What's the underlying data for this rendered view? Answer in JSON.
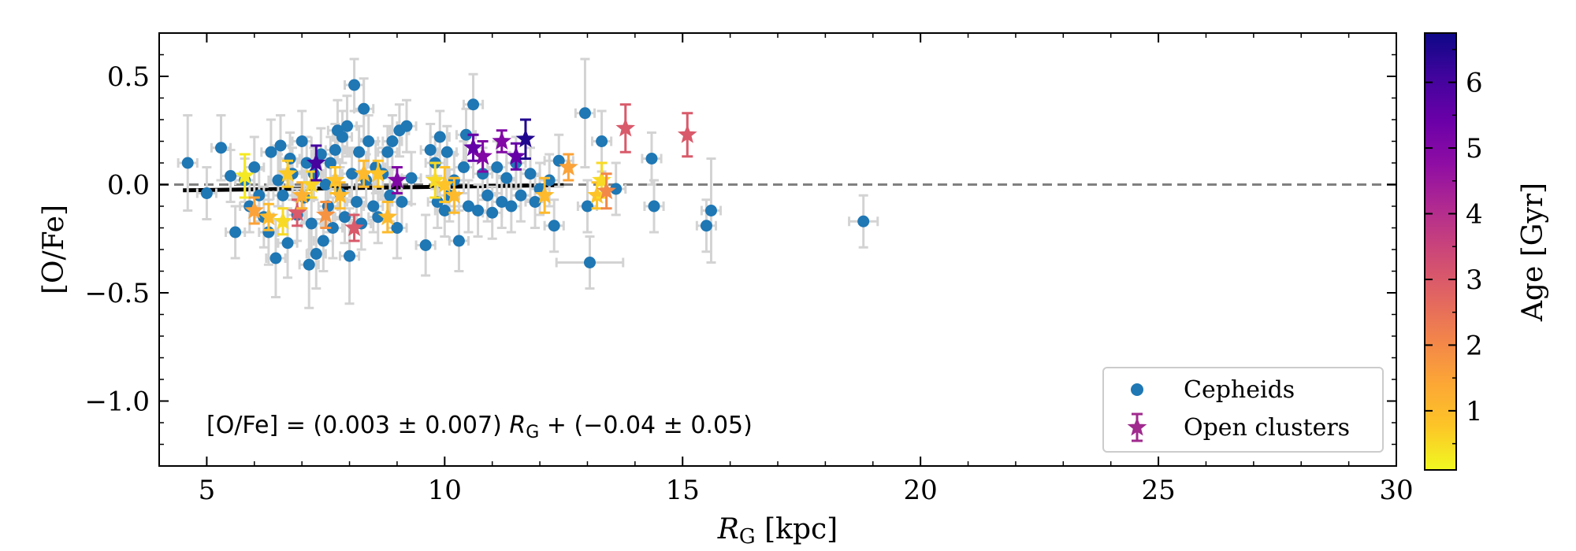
{
  "chart_data": {
    "type": "scatter",
    "title": "",
    "xlabel_main": "R",
    "xlabel_sub": "G",
    "xlabel_unit": " [kpc]",
    "ylabel": "[O/Fe]",
    "xlim": [
      4,
      30
    ],
    "ylim": [
      -1.3,
      0.7
    ],
    "x_ticks": [
      5,
      10,
      15,
      20,
      25,
      30
    ],
    "x_tick_labels": [
      "5",
      "10",
      "15",
      "20",
      "25",
      "30"
    ],
    "y_ticks": [
      0.5,
      0.0,
      -0.5,
      -1.0
    ],
    "y_tick_labels": [
      "0.5",
      "0.0",
      "−0.5",
      "−1.0"
    ],
    "reference_line": {
      "y": 0.0,
      "style": "dashed",
      "color": "#808080"
    },
    "fit": {
      "slope": 0.003,
      "slope_err": 0.007,
      "intercept": -0.04,
      "intercept_err": 0.05,
      "x_range": [
        4.5,
        12.5
      ],
      "color": "#000000",
      "label_prefix": "[O/Fe] = (0.003 ± 0.007) ",
      "label_var": "R",
      "label_sub": "G",
      "label_suffix": " + (−0.04 ± 0.05)"
    },
    "colorbar": {
      "label": "Age [Gyr]",
      "range": [
        0.1,
        6.75
      ],
      "ticks": [
        1,
        2,
        3,
        4,
        5,
        6
      ],
      "tick_labels": [
        "1",
        "2",
        "3",
        "4",
        "5",
        "6"
      ],
      "colormap": "plasma_r"
    },
    "legend": {
      "position": "lower-right",
      "entries": [
        "Cepheids",
        "Open clusters"
      ]
    },
    "colors": {
      "cepheids": "#1f77b4",
      "errorbar": "#d3d3d3",
      "legend_cluster": "#a02a8e"
    },
    "series": [
      {
        "name": "Cepheids",
        "marker": "circle",
        "points": [
          [
            4.6,
            0.1,
            0.22,
            0.2
          ],
          [
            5.0,
            -0.04,
            0.12,
            0.2
          ],
          [
            5.3,
            0.17,
            0.15,
            0.2
          ],
          [
            5.5,
            0.04,
            0.12,
            0.2
          ],
          [
            5.6,
            -0.22,
            0.12,
            0.2
          ],
          [
            5.8,
            0.02,
            0.1,
            0.2
          ],
          [
            5.9,
            -0.1,
            0.12,
            0.2
          ],
          [
            6.0,
            0.08,
            0.14,
            0.2
          ],
          [
            6.1,
            -0.05,
            0.12,
            0.2
          ],
          [
            6.2,
            -0.15,
            0.14,
            0.2
          ],
          [
            6.3,
            -0.22,
            0.15,
            0.2
          ],
          [
            6.35,
            0.15,
            0.15,
            0.2
          ],
          [
            6.45,
            -0.34,
            0.18,
            0.2
          ],
          [
            6.5,
            0.02,
            0.12,
            0.2
          ],
          [
            6.55,
            0.18,
            0.14,
            0.2
          ],
          [
            6.6,
            -0.05,
            0.12,
            0.2
          ],
          [
            6.7,
            -0.27,
            0.16,
            0.2
          ],
          [
            6.75,
            0.12,
            0.12,
            0.2
          ],
          [
            6.8,
            0.05,
            0.12,
            0.2
          ],
          [
            6.9,
            -0.14,
            0.12,
            0.2
          ],
          [
            7.0,
            0.2,
            0.14,
            0.2
          ],
          [
            7.05,
            -0.06,
            0.12,
            0.2
          ],
          [
            7.1,
            0.1,
            0.12,
            0.2
          ],
          [
            7.15,
            -0.37,
            0.2,
            0.2
          ],
          [
            7.2,
            -0.18,
            0.12,
            0.2
          ],
          [
            7.25,
            0.05,
            0.12,
            0.2
          ],
          [
            7.3,
            -0.32,
            0.16,
            0.2
          ],
          [
            7.4,
            0.14,
            0.12,
            0.2
          ],
          [
            7.45,
            -0.26,
            0.14,
            0.2
          ],
          [
            7.5,
            0.0,
            0.12,
            0.2
          ],
          [
            7.55,
            -0.1,
            0.12,
            0.2
          ],
          [
            7.6,
            0.1,
            0.12,
            0.2
          ],
          [
            7.65,
            -0.2,
            0.14,
            0.2
          ],
          [
            7.7,
            0.16,
            0.12,
            0.2
          ],
          [
            7.75,
            0.25,
            0.14,
            0.2
          ],
          [
            7.8,
            -0.04,
            0.12,
            0.2
          ],
          [
            7.85,
            0.22,
            0.12,
            0.2
          ],
          [
            7.9,
            -0.15,
            0.12,
            0.2
          ],
          [
            7.95,
            0.27,
            0.14,
            0.2
          ],
          [
            8.0,
            -0.33,
            0.22,
            0.2
          ],
          [
            8.05,
            0.05,
            0.12,
            0.2
          ],
          [
            8.1,
            0.46,
            0.12,
            0.2
          ],
          [
            8.15,
            -0.08,
            0.12,
            0.2
          ],
          [
            8.2,
            0.15,
            0.12,
            0.2
          ],
          [
            8.25,
            -0.18,
            0.12,
            0.2
          ],
          [
            8.3,
            0.35,
            0.14,
            0.2
          ],
          [
            8.35,
            0.02,
            0.12,
            0.2
          ],
          [
            8.4,
            0.2,
            0.12,
            0.2
          ],
          [
            8.5,
            -0.1,
            0.12,
            0.2
          ],
          [
            8.55,
            0.08,
            0.12,
            0.2
          ],
          [
            8.6,
            -0.15,
            0.12,
            0.2
          ],
          [
            8.7,
            0.05,
            0.12,
            0.2
          ],
          [
            8.8,
            0.15,
            0.12,
            0.2
          ],
          [
            8.85,
            -0.05,
            0.12,
            0.2
          ],
          [
            8.9,
            0.2,
            0.12,
            0.2
          ],
          [
            9.0,
            -0.2,
            0.14,
            0.2
          ],
          [
            9.05,
            0.25,
            0.12,
            0.2
          ],
          [
            9.1,
            -0.08,
            0.12,
            0.2
          ],
          [
            9.2,
            0.27,
            0.12,
            0.2
          ],
          [
            9.3,
            0.03,
            0.12,
            0.2
          ],
          [
            9.6,
            -0.28,
            0.14,
            0.2
          ],
          [
            9.7,
            0.16,
            0.12,
            0.2
          ],
          [
            9.8,
            0.1,
            0.12,
            0.2
          ],
          [
            9.85,
            -0.08,
            0.12,
            0.2
          ],
          [
            9.9,
            0.22,
            0.12,
            0.2
          ],
          [
            10.0,
            -0.12,
            0.12,
            0.2
          ],
          [
            10.05,
            0.15,
            0.12,
            0.2
          ],
          [
            10.1,
            -0.05,
            0.12,
            0.2
          ],
          [
            10.2,
            0.02,
            0.12,
            0.2
          ],
          [
            10.3,
            -0.26,
            0.14,
            0.2
          ],
          [
            10.4,
            0.08,
            0.12,
            0.2
          ],
          [
            10.45,
            0.23,
            0.12,
            0.2
          ],
          [
            10.5,
            -0.1,
            0.12,
            0.2
          ],
          [
            10.6,
            0.37,
            0.14,
            0.2
          ],
          [
            10.7,
            -0.12,
            0.12,
            0.2
          ],
          [
            10.8,
            0.05,
            0.12,
            0.2
          ],
          [
            10.9,
            -0.05,
            0.12,
            0.2
          ],
          [
            11.0,
            -0.13,
            0.12,
            0.2
          ],
          [
            11.1,
            0.08,
            0.12,
            0.2
          ],
          [
            11.2,
            -0.08,
            0.12,
            0.2
          ],
          [
            11.3,
            0.03,
            0.12,
            0.2
          ],
          [
            11.4,
            -0.1,
            0.12,
            0.2
          ],
          [
            11.5,
            0.1,
            0.12,
            0.2
          ],
          [
            11.6,
            -0.05,
            0.12,
            0.2
          ],
          [
            11.8,
            0.05,
            0.12,
            0.2
          ],
          [
            11.9,
            -0.08,
            0.12,
            0.2
          ],
          [
            12.0,
            -0.02,
            0.12,
            0.2
          ],
          [
            12.2,
            0.02,
            0.12,
            0.2
          ],
          [
            12.3,
            -0.19,
            0.12,
            0.2
          ],
          [
            12.4,
            0.11,
            0.12,
            0.3
          ],
          [
            12.95,
            0.33,
            0.25,
            0.2
          ],
          [
            13.0,
            -0.1,
            0.12,
            0.2
          ],
          [
            13.05,
            -0.36,
            0.12,
            0.7
          ],
          [
            13.3,
            0.2,
            0.14,
            0.2
          ],
          [
            13.6,
            -0.02,
            0.12,
            0.2
          ],
          [
            14.35,
            0.12,
            0.12,
            0.2
          ],
          [
            14.4,
            -0.1,
            0.12,
            0.2
          ],
          [
            15.5,
            -0.19,
            0.12,
            0.2
          ],
          [
            15.6,
            -0.12,
            0.24,
            0.2
          ],
          [
            18.8,
            -0.17,
            0.12,
            0.3
          ]
        ]
      },
      {
        "name": "Open clusters",
        "marker": "star",
        "points": [
          [
            5.8,
            0.04,
            0.1
          ],
          [
            6.0,
            -0.12,
            0.06
          ],
          [
            6.3,
            -0.15,
            0.06
          ],
          [
            6.6,
            -0.17,
            0.06
          ],
          [
            6.7,
            0.05,
            0.06
          ],
          [
            6.9,
            -0.13,
            0.06
          ],
          [
            7.0,
            -0.05,
            0.06
          ],
          [
            7.2,
            0.0,
            0.06
          ],
          [
            7.3,
            0.1,
            0.08
          ],
          [
            7.5,
            -0.14,
            0.06
          ],
          [
            7.7,
            0.02,
            0.06
          ],
          [
            7.8,
            -0.05,
            0.06
          ],
          [
            8.1,
            -0.2,
            0.06
          ],
          [
            8.3,
            0.05,
            0.06
          ],
          [
            8.6,
            0.05,
            0.06
          ],
          [
            8.8,
            -0.15,
            0.07
          ],
          [
            9.0,
            0.02,
            0.06
          ],
          [
            9.8,
            0.02,
            0.08
          ],
          [
            10.0,
            0.0,
            0.08
          ],
          [
            10.2,
            -0.05,
            0.08
          ],
          [
            10.6,
            0.17,
            0.06
          ],
          [
            10.8,
            0.13,
            0.07
          ],
          [
            11.2,
            0.2,
            0.05
          ],
          [
            11.5,
            0.13,
            0.06
          ],
          [
            11.7,
            0.21,
            0.09
          ],
          [
            12.1,
            -0.05,
            0.08
          ],
          [
            12.6,
            0.08,
            0.06
          ],
          [
            13.2,
            -0.05,
            0.06
          ],
          [
            13.3,
            0.02,
            0.08
          ],
          [
            13.4,
            -0.03,
            0.08
          ],
          [
            13.8,
            0.26,
            0.11
          ],
          [
            15.1,
            0.23,
            0.1
          ]
        ],
        "ages": [
          0.3,
          1.5,
          1.0,
          0.5,
          0.7,
          3.0,
          1.2,
          0.6,
          6.0,
          1.8,
          0.8,
          1.0,
          3.0,
          1.0,
          0.8,
          1.0,
          5.0,
          0.5,
          0.8,
          1.0,
          5.5,
          5.0,
          5.0,
          5.5,
          6.5,
          1.0,
          1.5,
          0.8,
          0.5,
          2.0,
          3.0,
          3.0
        ]
      }
    ]
  }
}
